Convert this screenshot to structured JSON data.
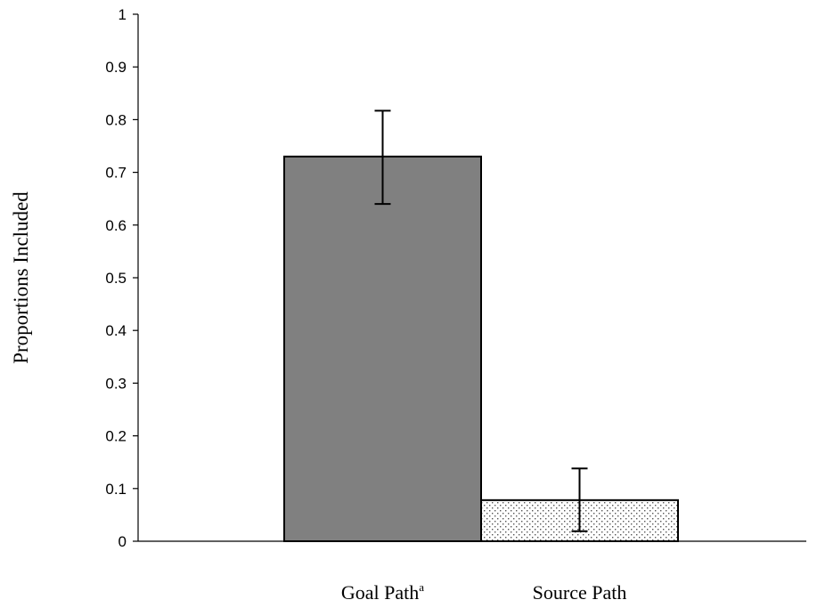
{
  "chart_data": {
    "type": "bar",
    "title": "",
    "xlabel": "",
    "ylabel": "Proportions Included",
    "ylim": [
      0,
      1
    ],
    "yticks": [
      "0",
      "0.1",
      "0.2",
      "0.3",
      "0.4",
      "0.5",
      "0.6",
      "0.7",
      "0.8",
      "0.9",
      "1"
    ],
    "grid": false,
    "legend": "none",
    "categories": [
      {
        "label": "Goal Path",
        "superscript": "a"
      },
      {
        "label": "Source Path",
        "superscript": ""
      }
    ],
    "values": [
      0.73,
      0.078
    ],
    "error_bars": [
      {
        "low": 0.64,
        "high": 0.817
      },
      {
        "low": 0.019,
        "high": 0.138
      }
    ],
    "bar_styles": [
      {
        "fill": "#808080",
        "pattern": "solid"
      },
      {
        "fill": "#ffffff",
        "pattern": "dotted"
      }
    ]
  }
}
